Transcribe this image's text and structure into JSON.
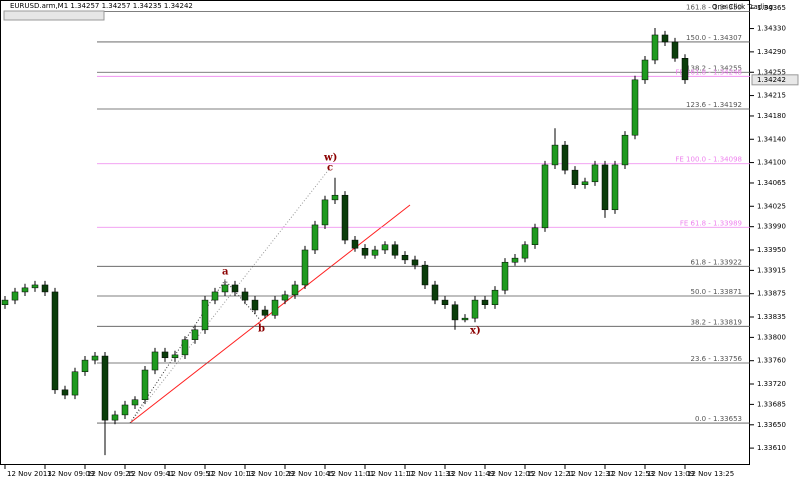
{
  "toolbar": {
    "label": "One Click Trading"
  },
  "chart_data": {
    "type": "candlestick",
    "title": "EURUSD.arm,M1  1.34257 1.34257 1.34235 1.34242",
    "up_color": "#1f9a1f",
    "down_color": "#0b3d0b",
    "wick_color": "#000000",
    "xlim": [
      -2,
      296
    ],
    "ylim": [
      1.33581,
      1.34379
    ],
    "x": [
      0,
      4,
      8,
      12,
      16,
      20,
      24,
      28,
      32,
      36,
      40,
      44,
      48,
      52,
      56,
      60,
      64,
      68,
      72,
      76,
      80,
      84,
      88,
      92,
      96,
      100,
      104,
      108,
      112,
      116,
      120,
      124,
      128,
      132,
      136,
      140,
      144,
      148,
      152,
      156,
      160,
      164,
      168,
      172,
      176,
      180,
      184,
      188,
      192,
      196,
      200,
      204,
      208,
      212,
      216,
      220,
      224,
      228,
      232,
      236,
      240,
      244,
      248,
      252,
      256,
      260,
      264,
      268,
      272
    ],
    "open": [
      1.33856,
      1.33864,
      1.33878,
      1.33885,
      1.3389,
      1.33878,
      1.3371,
      1.33701,
      1.33741,
      1.33761,
      1.33768,
      1.33658,
      1.33667,
      1.33684,
      1.33693,
      1.33744,
      1.33775,
      1.33765,
      1.3377,
      1.33796,
      1.33813,
      1.33864,
      1.33878,
      1.3389,
      1.33878,
      1.33864,
      1.33847,
      1.33838,
      1.33864,
      1.33873,
      1.3389,
      1.3395,
      1.33993,
      1.34036,
      1.34044,
      1.33967,
      1.33953,
      1.33941,
      1.3395,
      1.33959,
      1.33941,
      1.33933,
      1.33924,
      1.3389,
      1.33864,
      1.33856,
      1.3383,
      1.33833,
      1.33864,
      1.33856,
      1.33881,
      1.33929,
      1.33936,
      1.33959,
      1.33988,
      1.34096,
      1.3413,
      1.34087,
      1.34062,
      1.34067,
      1.34096,
      1.34019,
      1.34096,
      1.34147,
      1.34242,
      1.34276,
      1.34319,
      1.34307,
      1.34279
    ],
    "high": [
      1.33871,
      1.33885,
      1.33892,
      1.33897,
      1.33897,
      1.33885,
      1.33717,
      1.33748,
      1.33768,
      1.33775,
      1.33775,
      1.33674,
      1.33691,
      1.33699,
      1.33751,
      1.33782,
      1.33782,
      1.33777,
      1.33802,
      1.3382,
      1.33871,
      1.33885,
      1.33897,
      1.33897,
      1.33885,
      1.33871,
      1.33854,
      1.33871,
      1.3388,
      1.33897,
      1.33957,
      1.34,
      1.34043,
      1.34074,
      1.34051,
      1.33974,
      1.3396,
      1.33957,
      1.33965,
      1.33965,
      1.33948,
      1.3394,
      1.33931,
      1.33897,
      1.33871,
      1.33862,
      1.3384,
      1.33871,
      1.33871,
      1.33888,
      1.33936,
      1.33943,
      1.33965,
      1.33995,
      1.34103,
      1.34159,
      1.34137,
      1.34094,
      1.34074,
      1.34103,
      1.34103,
      1.34103,
      1.34154,
      1.34249,
      1.34283,
      1.34331,
      1.34326,
      1.34314,
      1.34286
    ],
    "low": [
      1.33849,
      1.33857,
      1.33871,
      1.33878,
      1.33871,
      1.33703,
      1.33694,
      1.33694,
      1.33734,
      1.33754,
      1.33598,
      1.33651,
      1.3366,
      1.33677,
      1.33686,
      1.33737,
      1.33758,
      1.33758,
      1.33763,
      1.33789,
      1.33806,
      1.33857,
      1.33871,
      1.33871,
      1.33857,
      1.3384,
      1.33832,
      1.33832,
      1.33857,
      1.33866,
      1.33883,
      1.33943,
      1.33986,
      1.34029,
      1.3396,
      1.33947,
      1.33935,
      1.33935,
      1.33943,
      1.33935,
      1.33926,
      1.33917,
      1.33883,
      1.33857,
      1.33849,
      1.33813,
      1.33826,
      1.33826,
      1.33849,
      1.33849,
      1.33874,
      1.33923,
      1.33929,
      1.33952,
      1.33981,
      1.34089,
      1.3408,
      1.34055,
      1.34055,
      1.3406,
      1.34005,
      1.34012,
      1.34089,
      1.3414,
      1.34235,
      1.34269,
      1.343,
      1.34273,
      1.34235
    ],
    "close": [
      1.33864,
      1.33878,
      1.33885,
      1.3389,
      1.33878,
      1.3371,
      1.33701,
      1.33741,
      1.33761,
      1.33768,
      1.33658,
      1.33667,
      1.33684,
      1.33693,
      1.33744,
      1.33775,
      1.33765,
      1.3377,
      1.33796,
      1.33813,
      1.33864,
      1.33878,
      1.3389,
      1.33878,
      1.33864,
      1.33847,
      1.33838,
      1.33864,
      1.33873,
      1.3389,
      1.3395,
      1.33993,
      1.34036,
      1.34044,
      1.33967,
      1.33953,
      1.33941,
      1.3395,
      1.33959,
      1.33941,
      1.33933,
      1.33924,
      1.3389,
      1.33864,
      1.33856,
      1.3383,
      1.33833,
      1.33864,
      1.33856,
      1.33881,
      1.33929,
      1.33936,
      1.33959,
      1.33988,
      1.34096,
      1.3413,
      1.34087,
      1.34062,
      1.34067,
      1.34096,
      1.34019,
      1.34096,
      1.34147,
      1.34242,
      1.34276,
      1.34319,
      1.34307,
      1.34279,
      1.34242
    ],
    "yticks": [
      1.34365,
      {
        "value": 1.3433,
        "label": "1.34330"
      },
      {
        "value": 1.3429,
        "label": "1.34290"
      },
      1.34255,
      1.34215,
      {
        "value": 1.3418,
        "label": "1.34180"
      },
      {
        "value": 1.3414,
        "label": "1.34140"
      },
      {
        "value": 1.341,
        "label": "1.34100"
      },
      1.34065,
      1.34025,
      {
        "value": 1.3399,
        "label": "1.33990"
      },
      {
        "value": 1.3395,
        "label": "1.33950"
      },
      1.33915,
      1.33875,
      1.33835,
      {
        "value": 1.338,
        "label": "1.33800"
      },
      {
        "value": 1.3376,
        "label": "1.33760"
      },
      {
        "value": 1.3372,
        "label": "1.33720"
      },
      1.33685,
      {
        "value": 1.3365,
        "label": "1.33650"
      },
      {
        "value": 1.3361,
        "label": "1.33610"
      }
    ],
    "xticks": [
      {
        "value": 0,
        "label": "12 Nov 2013"
      },
      {
        "value": 16,
        "label": "12 Nov 09:09"
      },
      {
        "value": 32,
        "label": "12 Nov 09:25"
      },
      {
        "value": 48,
        "label": "12 Nov 09:41"
      },
      {
        "value": 64,
        "label": "12 Nov 09:57"
      },
      {
        "value": 80,
        "label": "12 Nov 10:13"
      },
      {
        "value": 96,
        "label": "12 Nov 10:29"
      },
      {
        "value": 112,
        "label": "12 Nov 10:45"
      },
      {
        "value": 128,
        "label": "12 Nov 11:01"
      },
      {
        "value": 144,
        "label": "12 Nov 11:17"
      },
      {
        "value": 160,
        "label": "12 Nov 11:33"
      },
      {
        "value": 176,
        "label": "12 Nov 11:49"
      },
      {
        "value": 192,
        "label": "12 Nov 12:05"
      },
      {
        "value": 208,
        "label": "12 Nov 12:21"
      },
      {
        "value": 224,
        "label": "12 Nov 12:37"
      },
      {
        "value": 240,
        "label": "12 Nov 12:53"
      },
      {
        "value": 256,
        "label": "12 Nov 13:09"
      },
      {
        "value": 272,
        "label": "12 Nov 13:25"
      }
    ],
    "levels": [
      {
        "label": "161.8 - 1.34359",
        "value": 1.34359,
        "color": "#555555"
      },
      {
        "label": "150.0 - 1.34307",
        "value": 1.34307,
        "color": "#555555"
      },
      {
        "label": "138.2 - 1.34255",
        "value": 1.34255,
        "color": "#555555"
      },
      {
        "label": "FE 161.8 - 1.34248",
        "value": 1.34248,
        "color": "#ee82ee"
      },
      {
        "label": "123.6 - 1.34192",
        "value": 1.34192,
        "color": "#555555"
      },
      {
        "label": "FE 100.0 - 1.34098",
        "value": 1.34098,
        "color": "#ee82ee"
      },
      {
        "label": "FE 61.8 - 1.33989",
        "value": 1.33989,
        "color": "#ee82ee"
      },
      {
        "label": "61.8 - 1.33922",
        "value": 1.33922,
        "color": "#555555"
      },
      {
        "label": "50.0 - 1.33871",
        "value": 1.33871,
        "color": "#555555"
      },
      {
        "label": "38.2 - 1.33819",
        "value": 1.33819,
        "color": "#555555"
      },
      {
        "label": "23.6 - 1.33756",
        "value": 1.33756,
        "color": "#555555"
      },
      {
        "label": "0.0 - 1.33653",
        "value": 1.33653,
        "color": "#555555"
      }
    ],
    "last_price": 1.34242,
    "annotations": [
      "a",
      "b",
      "w)",
      "c",
      "x)"
    ]
  }
}
